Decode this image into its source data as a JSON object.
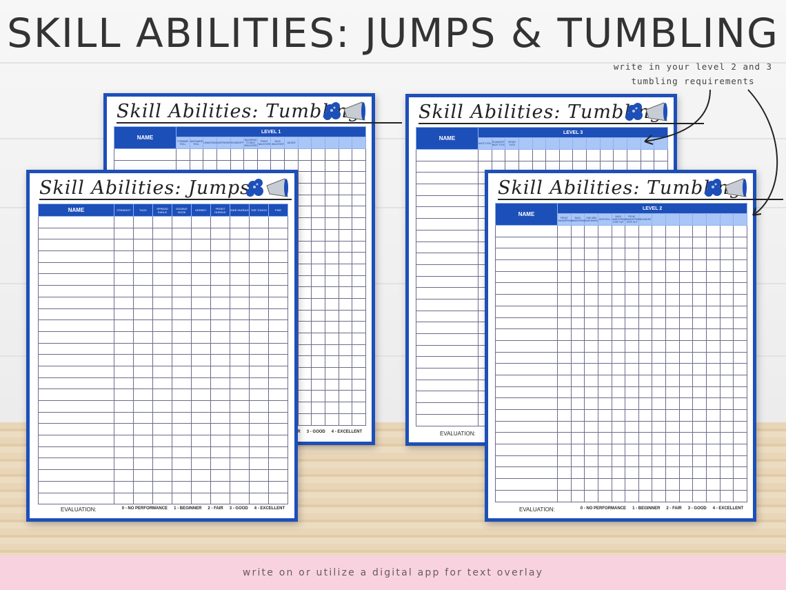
{
  "title": "SKILL ABILITIES: JUMPS & TUMBLING",
  "note": "write in your level 2 and 3 tumbling requirements",
  "footer_banner": "write on or utilize a digital app for text overlay",
  "colors": {
    "sheet_blue": "#1d4fb8",
    "sub_header_blue": "#a9c6f7",
    "banner_pink": "#f8d3df"
  },
  "evaluation": {
    "label": "EVALUATION:",
    "scale": [
      "0 - NO PERFORMANCE",
      "1 - BEGINNER",
      "2 - FAIR",
      "3 - GOOD",
      "4 - EXCELLENT"
    ]
  },
  "sheets": [
    {
      "id": "tumbling-level-1",
      "title": "Skill Abilities: Tumbling",
      "name_header": "NAME",
      "level": "LEVEL 1",
      "columns": [
        "FORWARD ROLL",
        "BACKWARD ROLL",
        "HANDSTAND",
        "CARTWHEEL",
        "ROUNDOFF",
        "BACKBEND TO BACK WALKOVER",
        "FRONT WALKOVER",
        "BACK WALKOVER",
        "VALDEZ",
        "",
        "",
        "",
        "",
        ""
      ]
    },
    {
      "id": "jumps",
      "title": "Skill Abilities: Jumps",
      "name_header": "NAME",
      "level": "",
      "columns": [
        "STRAIGHT",
        "TUCK",
        "SPREAD EAGLE",
        "DOUBLE HOOK",
        "HERKEY",
        "FRONT HURDLE",
        "SIDE HURDLE",
        "TOE TOUCH",
        "PIKE"
      ]
    },
    {
      "id": "tumbling-level-3",
      "title": "Skill Abilities: Tumbling",
      "name_header": "NAME",
      "level": "LEVEL 3",
      "columns": [
        "BACK TUCK",
        "ROUNDOFF BACK TUCK",
        "FRONT TUCK",
        "",
        "",
        "",
        "",
        "",
        "",
        "",
        "",
        "",
        "",
        ""
      ]
    },
    {
      "id": "tumbling-level-2",
      "title": "Skill Abilities: Tumbling",
      "name_header": "NAME",
      "level": "LEVEL 2",
      "columns": [
        "FRONT HANDSPRING",
        "BACK HANDSPRING",
        "ONE ARM CARTWHEEL",
        "DIVE ROLL",
        "BACK HANDSPRING STEP OUT",
        "FRONT HANDSPRING STEP OUT",
        "BOUNDER",
        "",
        "",
        "",
        "",
        "",
        "",
        ""
      ]
    }
  ]
}
